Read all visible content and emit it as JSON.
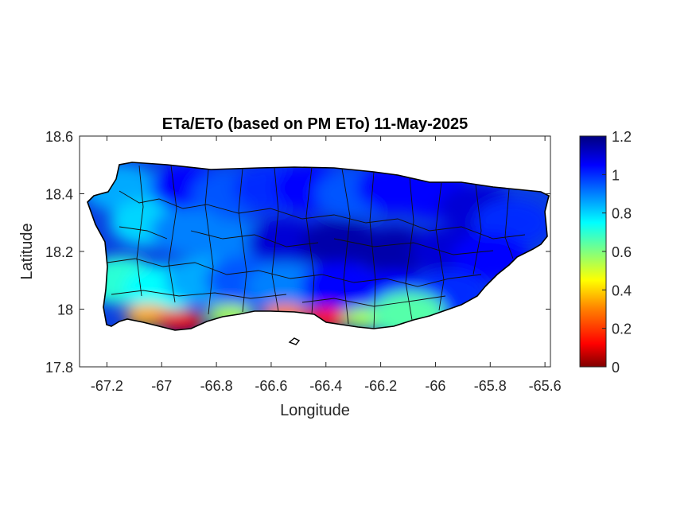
{
  "chart_data": {
    "type": "heatmap",
    "title": "ETa/ETo (based on PM ETo) 11-May-2025",
    "xlabel": "Longitude",
    "ylabel": "Latitude",
    "xlim": [
      -67.3,
      -65.58
    ],
    "ylim": [
      17.8,
      18.6
    ],
    "xticks": [
      -67.2,
      -67,
      -66.8,
      -66.6,
      -66.4,
      -66.2,
      -66,
      -65.8,
      -65.6
    ],
    "xtick_labels": [
      "-67.2",
      "-67",
      "-66.8",
      "-66.6",
      "-66.4",
      "-66.2",
      "-66",
      "-65.8",
      "-65.6"
    ],
    "yticks": [
      17.8,
      18,
      18.2,
      18.4,
      18.6
    ],
    "ytick_labels": [
      "17.8",
      "18",
      "18.2",
      "18.4",
      "18.6"
    ],
    "colorbar": {
      "colormap": "jet",
      "range": [
        0,
        1.2
      ],
      "ticks": [
        0,
        0.2,
        0.4,
        0.6,
        0.8,
        1,
        1.2
      ],
      "tick_labels": [
        "0",
        "0.2",
        "0.4",
        "0.6",
        "0.8",
        "1",
        "1.2"
      ]
    },
    "grid": false,
    "regional_values": [
      {
        "lon": -67.15,
        "lat": 18.42,
        "value": 0.85
      },
      {
        "lon": -67.05,
        "lat": 18.3,
        "value": 0.8
      },
      {
        "lon": -66.9,
        "lat": 18.42,
        "value": 1.05
      },
      {
        "lon": -66.75,
        "lat": 18.4,
        "value": 0.95
      },
      {
        "lon": -66.6,
        "lat": 18.42,
        "value": 1.0
      },
      {
        "lon": -66.45,
        "lat": 18.42,
        "value": 1.05
      },
      {
        "lon": -66.3,
        "lat": 18.4,
        "value": 0.95
      },
      {
        "lon": -66.15,
        "lat": 18.42,
        "value": 1.05
      },
      {
        "lon": -66.0,
        "lat": 18.4,
        "value": 1.05
      },
      {
        "lon": -65.85,
        "lat": 18.35,
        "value": 1.1
      },
      {
        "lon": -65.72,
        "lat": 18.3,
        "value": 1.0
      },
      {
        "lon": -66.9,
        "lat": 18.27,
        "value": 0.9
      },
      {
        "lon": -66.75,
        "lat": 18.23,
        "value": 0.9
      },
      {
        "lon": -66.55,
        "lat": 18.23,
        "value": 1.1
      },
      {
        "lon": -66.35,
        "lat": 18.23,
        "value": 1.15
      },
      {
        "lon": -66.15,
        "lat": 18.2,
        "value": 1.15
      },
      {
        "lon": -65.95,
        "lat": 18.2,
        "value": 1.1
      },
      {
        "lon": -65.8,
        "lat": 18.18,
        "value": 1.05
      },
      {
        "lon": -67.15,
        "lat": 18.1,
        "value": 0.7
      },
      {
        "lon": -67.0,
        "lat": 18.07,
        "value": 0.75
      },
      {
        "lon": -66.85,
        "lat": 18.1,
        "value": 0.85
      },
      {
        "lon": -66.7,
        "lat": 18.1,
        "value": 0.95
      },
      {
        "lon": -66.55,
        "lat": 18.08,
        "value": 0.9
      },
      {
        "lon": -66.35,
        "lat": 18.08,
        "value": 1.05
      },
      {
        "lon": -66.15,
        "lat": 18.05,
        "value": 1.05
      },
      {
        "lon": -65.95,
        "lat": 18.05,
        "value": 1.0
      },
      {
        "lon": -67.05,
        "lat": 17.98,
        "value": 0.35
      },
      {
        "lon": -66.93,
        "lat": 17.96,
        "value": 0.1
      },
      {
        "lon": -66.75,
        "lat": 17.98,
        "value": 0.55
      },
      {
        "lon": -66.55,
        "lat": 17.98,
        "value": 0.3
      },
      {
        "lon": -66.4,
        "lat": 17.97,
        "value": 0.15
      },
      {
        "lon": -66.25,
        "lat": 17.97,
        "value": 0.55
      },
      {
        "lon": -66.1,
        "lat": 17.98,
        "value": 0.65
      }
    ]
  }
}
